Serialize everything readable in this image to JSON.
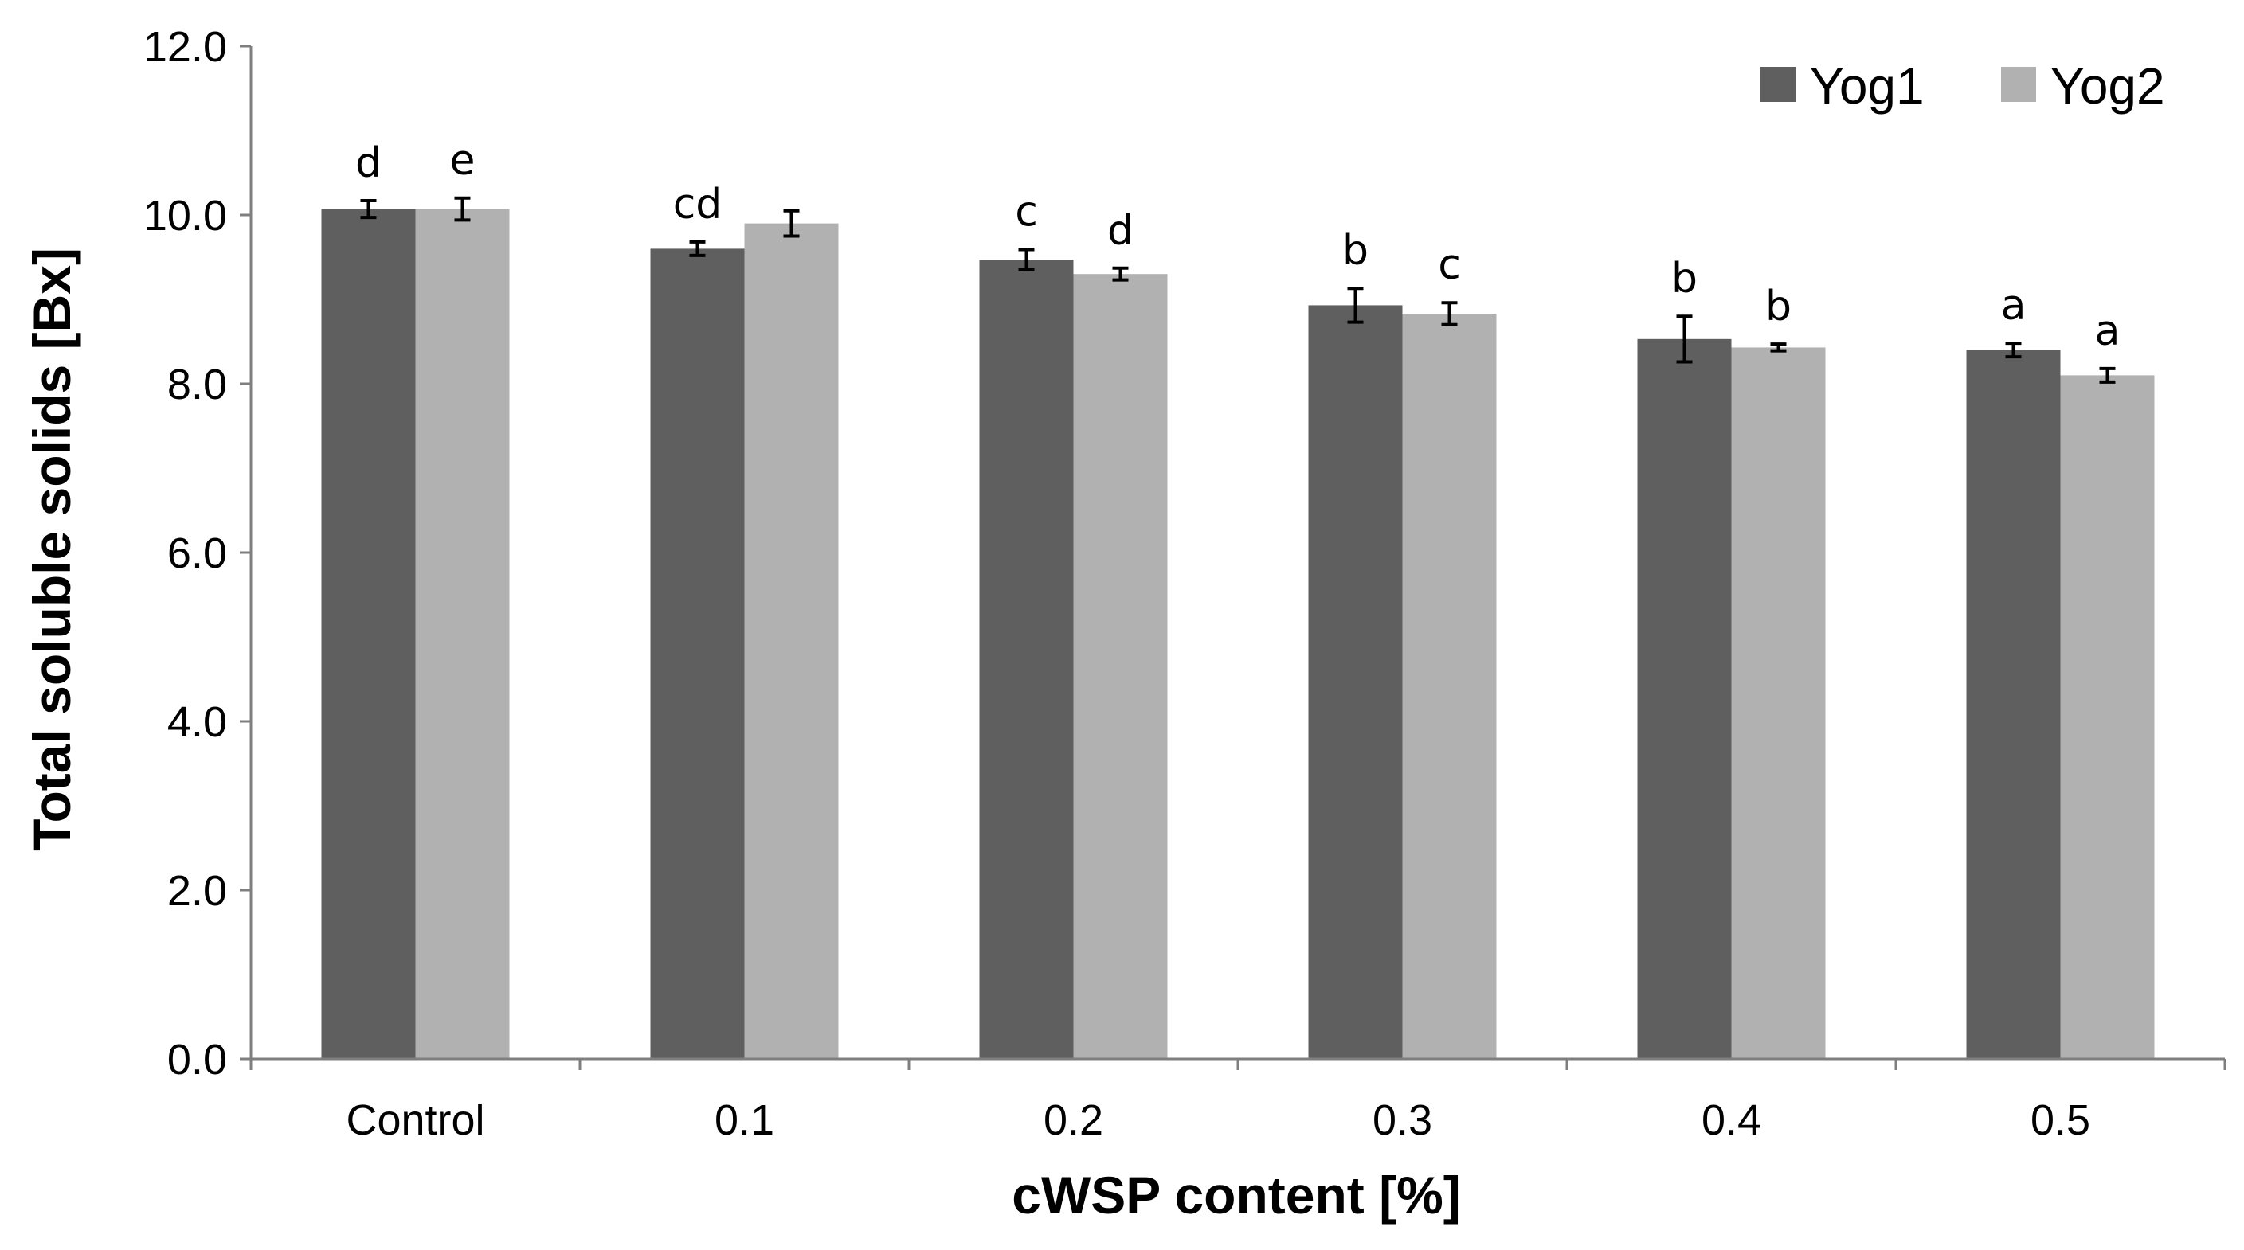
{
  "chart_data": {
    "type": "bar",
    "title": "",
    "xlabel": "cWSP content [%]",
    "ylabel": "Total soluble solids [Bx]",
    "categories": [
      "Control",
      "0.1",
      "0.2",
      "0.3",
      "0.4",
      "0.5"
    ],
    "ylim": [
      0,
      12
    ],
    "yticks": [
      "0.0",
      "2.0",
      "4.0",
      "6.0",
      "8.0",
      "10.0",
      "12.0"
    ],
    "grid": false,
    "legend_position": "top-right",
    "series": [
      {
        "name": "Yog1",
        "color": "#5f5f5f",
        "values": [
          10.07,
          9.6,
          9.47,
          8.93,
          8.53,
          8.4
        ],
        "errors": [
          0.1,
          0.08,
          0.12,
          0.2,
          0.27,
          0.08
        ],
        "labels": [
          "d",
          "cd",
          "c",
          "b",
          "b",
          "a"
        ]
      },
      {
        "name": "Yog2",
        "color": "#b1b1b1",
        "values": [
          10.07,
          9.9,
          9.3,
          8.83,
          8.43,
          8.1
        ],
        "errors": [
          0.13,
          0.15,
          0.07,
          0.13,
          0.04,
          0.08
        ],
        "labels": [
          "e",
          "",
          "d",
          "c",
          "b",
          "a"
        ]
      }
    ]
  }
}
